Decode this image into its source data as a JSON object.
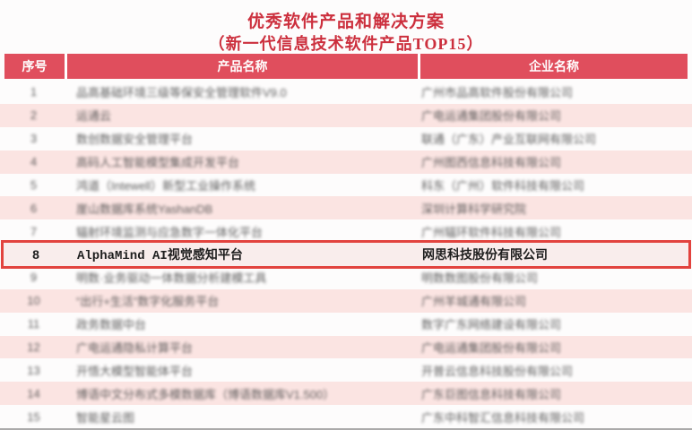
{
  "title": "优秀软件产品和解决方案",
  "subtitle": "（新一代信息技术软件产品TOP15）",
  "table": {
    "headers": [
      "序号",
      "产品名称",
      "企业名称"
    ],
    "rows": [
      {
        "no": "1",
        "product": "品高基础环境三级等保安全管理软件V9.0",
        "company": "广州市品高软件股份有限公司"
      },
      {
        "no": "2",
        "product": "运通云",
        "company": "广电运通集团股份有限公司"
      },
      {
        "no": "3",
        "product": "数创数据安全管理平台",
        "company": "联通（广东）产业互联网有限公司"
      },
      {
        "no": "4",
        "product": "高码人工智能模型集成开发平台",
        "company": "广州图西信息科技有限公司"
      },
      {
        "no": "5",
        "product": "鸿道（Intewell）新型工业操作系统",
        "company": "科东（广州）软件科技有限公司"
      },
      {
        "no": "6",
        "product": "崖山数据库系统YashanDB",
        "company": "深圳计算科学研究院"
      },
      {
        "no": "7",
        "product": "辐射环境监测与应急数字一体化平台",
        "company": "广州辐环软件科技有限公司"
      },
      {
        "no": "8",
        "product": "AlphaMind AI视觉感知平台",
        "company": "网思科技股份有限公司"
      },
      {
        "no": "9",
        "product": "明数·业务驱动一体数据分析建模工具",
        "company": "明数数图股份有限公司"
      },
      {
        "no": "10",
        "product": "“出行+生活”数字化服务平台",
        "company": "广州羊城通有限公司"
      },
      {
        "no": "11",
        "product": "政务数据中台",
        "company": "数字广东网络建设有限公司"
      },
      {
        "no": "12",
        "product": "广电运通隐私计算平台",
        "company": "广电运通集团股份有限公司"
      },
      {
        "no": "13",
        "product": "开悟大模型智能体平台",
        "company": "开普云信息科技股份有限公司"
      },
      {
        "no": "14",
        "product": "博语中文分布式多模数据库（博语数据库V1.500）",
        "company": "广东巨图信息科技有限公司"
      },
      {
        "no": "15",
        "product": "智能星云图",
        "company": "广东中科智汇信息科技有限公司"
      }
    ]
  },
  "highlight": {
    "row_no": "8"
  },
  "colors": {
    "title_red": "#cc2f3d",
    "header_bg": "#e04e5d",
    "stripe_pink": "#fbe4e2",
    "highlight_border": "#e2433e",
    "highlight_bg": "#f9edec",
    "text_dark": "#4a4a4a"
  }
}
